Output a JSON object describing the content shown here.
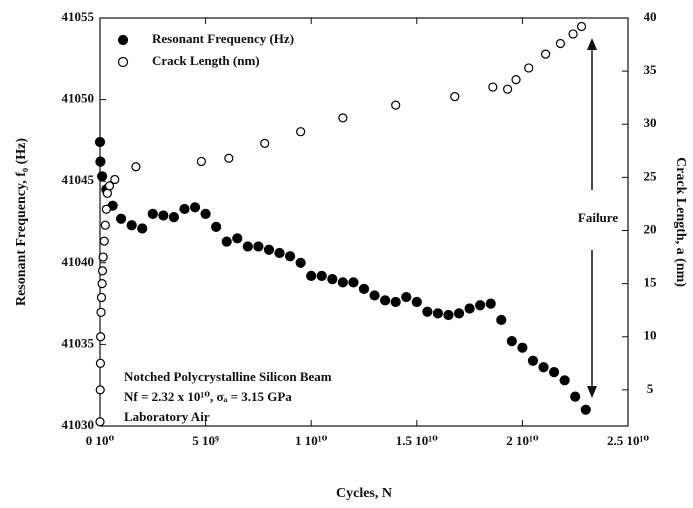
{
  "chart_data": {
    "type": "scatter",
    "xlabel": "Cycles, N",
    "ylabel": "Resonant Frequency, f₀ (Hz)",
    "y2label": "Crack Length, a (nm)",
    "xlim": [
      0,
      25000000000.0
    ],
    "xticks": [
      {
        "value": 0,
        "label": "0 10⁰"
      },
      {
        "value": 5000000000.0,
        "label": "5 10⁹"
      },
      {
        "value": 10000000000.0,
        "label": "1 10¹⁰"
      },
      {
        "value": 15000000000.0,
        "label": "1.5 10¹⁰"
      },
      {
        "value": 20000000000.0,
        "label": "2 10¹⁰"
      },
      {
        "value": 25000000000.0,
        "label": "2.5 10¹⁰"
      }
    ],
    "ylim": [
      41030,
      41055
    ],
    "yticks": [
      41030,
      41035,
      41040,
      41045,
      41050,
      41055
    ],
    "y2lim": [
      1.6,
      40
    ],
    "y2ticks": [
      5,
      10,
      15,
      20,
      25,
      30,
      35,
      40
    ],
    "grid": false,
    "legend": "upper left",
    "annotations": [
      "Failure",
      "Notched Polycrystalline Silicon Beam",
      "Nf = 2.32 x 10¹⁰, σₐ = 3.15 GPa",
      "Laboratory Air"
    ],
    "series": [
      {
        "name": "Resonant Frequency (Hz)",
        "color": "#000000",
        "marker": "filled",
        "x": [
          0,
          20000000.0,
          100000000.0,
          300000000.0,
          600000000.0,
          1000000000.0,
          1500000000.0,
          2000000000.0,
          2500000000.0,
          3000000000.0,
          3500000000.0,
          4000000000.0,
          4500000000.0,
          5000000000.0,
          5500000000.0,
          6000000000.0,
          6500000000.0,
          7000000000.0,
          7500000000.0,
          8000000000.0,
          8500000000.0,
          9000000000.0,
          9500000000.0,
          10000000000.0,
          10500000000.0,
          11000000000.0,
          11500000000.0,
          12000000000.0,
          12500000000.0,
          13000000000.0,
          13500000000.0,
          14000000000.0,
          14500000000.0,
          15000000000.0,
          15500000000.0,
          16000000000.0,
          16500000000.0,
          17000000000.0,
          17500000000.0,
          18000000000.0,
          18500000000.0,
          19000000000.0,
          19500000000.0,
          20000000000.0,
          20500000000.0,
          21000000000.0,
          21500000000.0,
          22000000000.0,
          22500000000.0,
          23000000000.0
        ],
        "values": [
          41047.4,
          41046.2,
          41045.3,
          41044.5,
          41043.5,
          41042.7,
          41042.3,
          41042.1,
          41043.0,
          41042.9,
          41042.8,
          41043.3,
          41043.4,
          41043.0,
          41042.2,
          41041.3,
          41041.5,
          41041.0,
          41041.0,
          41040.8,
          41040.6,
          41040.4,
          41040.0,
          41039.2,
          41039.2,
          41039.0,
          41038.8,
          41038.8,
          41038.4,
          41038.0,
          41037.7,
          41037.6,
          41037.9,
          41037.6,
          41037.0,
          41036.9,
          41036.8,
          41036.9,
          41037.2,
          41037.4,
          41037.5,
          41036.5,
          41035.2,
          41034.8,
          41034.0,
          41033.6,
          41033.3,
          41032.8,
          41031.8,
          41031.0
        ]
      },
      {
        "name": "Crack Length (nm)",
        "color": "#000000",
        "marker": "open",
        "axis": "y2",
        "x": [
          0,
          10000000.0,
          20000000.0,
          30000000.0,
          50000000.0,
          70000000.0,
          100000000.0,
          120000000.0,
          150000000.0,
          200000000.0,
          250000000.0,
          300000000.0,
          350000000.0,
          450000000.0,
          700000000.0,
          1700000000.0,
          4800000000.0,
          6100000000.0,
          7800000000.0,
          9500000000.0,
          11500000000.0,
          14000000000.0,
          16800000000.0,
          18600000000.0,
          19300000000.0,
          19700000000.0,
          20300000000.0,
          21100000000.0,
          21800000000.0,
          22400000000.0,
          22800000000.0
        ],
        "values": [
          2,
          5,
          7.5,
          10,
          12.3,
          13.7,
          15,
          16.2,
          17.5,
          19,
          20.5,
          22,
          23.5,
          24.2,
          24.8,
          26,
          26.5,
          26.8,
          28.2,
          29.3,
          30.6,
          31.8,
          32.6,
          33.5,
          33.3,
          34.2,
          35.3,
          36.6,
          37.6,
          38.5,
          39.2
        ]
      }
    ]
  }
}
